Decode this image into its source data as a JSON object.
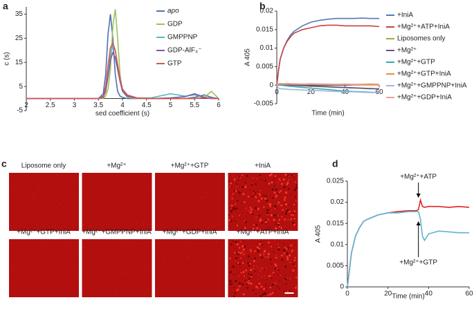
{
  "chart_data": [
    {
      "type": "line",
      "panel_label": "a",
      "y_label": "c (s)",
      "x_label": "sed coefficient (s)",
      "xlim": [
        2,
        6
      ],
      "xticks": [
        2,
        2.5,
        3,
        3.5,
        4,
        4.5,
        5,
        5.5,
        6
      ],
      "ylim": [
        -5,
        38
      ],
      "yticks": [
        -5,
        5,
        15,
        25,
        35
      ],
      "x": [
        2,
        3,
        3.5,
        3.6,
        3.65,
        3.7,
        3.75,
        3.8,
        3.85,
        3.9,
        3.95,
        4.0,
        4.1,
        4.3,
        4.6,
        5,
        5.3,
        5.5,
        5.7,
        5.85,
        6
      ],
      "series": [
        {
          "name": "apo",
          "color": "#4f6fb0",
          "values": [
            0,
            0,
            0,
            2,
            10,
            27,
            35,
            25,
            10,
            3,
            1,
            0.5,
            0,
            0,
            0,
            0,
            0,
            0.5,
            1.5,
            0.5,
            0
          ]
        },
        {
          "name": "GDP",
          "color": "#9bc256",
          "values": [
            0,
            0,
            0,
            0,
            1,
            4,
            12,
            30,
            37,
            25,
            10,
            3,
            0.5,
            0,
            0,
            0,
            0,
            0,
            0.5,
            3,
            0
          ]
        },
        {
          "name": "GMPPNP",
          "color": "#58b6c0",
          "values": [
            0,
            0,
            0,
            0.5,
            3,
            10,
            18,
            22,
            20,
            14,
            8,
            4,
            1,
            0.2,
            0.3,
            2,
            1,
            1.5,
            0.5,
            0.2,
            0
          ]
        },
        {
          "name": "GDP-AlF₄⁻",
          "color": "#7a5aa6",
          "values": [
            0,
            0,
            0,
            0.5,
            3,
            9,
            16,
            19,
            17,
            12,
            7,
            3,
            1,
            0.2,
            0,
            0.3,
            0.8,
            2,
            0.5,
            0,
            0
          ]
        },
        {
          "name": "GTP",
          "color": "#d9534f",
          "values": [
            0,
            0,
            0,
            1,
            5,
            14,
            21,
            23,
            20,
            14,
            8,
            4,
            1.5,
            0.3,
            0,
            0,
            0,
            0,
            0.3,
            0,
            0
          ]
        }
      ]
    },
    {
      "type": "line",
      "panel_label": "b",
      "y_label": "A 405",
      "x_label": "Time (min)",
      "xlim": [
        0,
        60
      ],
      "xticks": [
        0,
        20,
        40,
        60
      ],
      "ylim": [
        -0.005,
        0.02
      ],
      "yticks": [
        -0.005,
        0,
        0.005,
        0.01,
        0.015,
        0.02
      ],
      "x": [
        0,
        1,
        2,
        4,
        6,
        8,
        10,
        15,
        20,
        25,
        30,
        35,
        40,
        45,
        50,
        55,
        60
      ],
      "series": [
        {
          "name": "+IniA",
          "color": "#4f79b8",
          "values": [
            0,
            0.004,
            0.007,
            0.01,
            0.012,
            0.0135,
            0.0145,
            0.016,
            0.017,
            0.0175,
            0.0178,
            0.018,
            0.018,
            0.018,
            0.0181,
            0.018,
            0.018
          ]
        },
        {
          "name": "+Mg²⁺+ATP+IniA",
          "color": "#c8413f",
          "values": [
            0,
            0.004,
            0.007,
            0.01,
            0.0118,
            0.013,
            0.014,
            0.015,
            0.0155,
            0.016,
            0.0162,
            0.0162,
            0.016,
            0.016,
            0.016,
            0.016,
            0.0158
          ]
        },
        {
          "name": "Liposomes only",
          "color": "#8db14a",
          "values": [
            0,
            0,
            0,
            0,
            0,
            0,
            -0.0001,
            -0.0002,
            -0.0003,
            -0.0004,
            -0.0005,
            -0.0006,
            -0.0007,
            -0.0008,
            -0.0009,
            -0.001,
            -0.001
          ]
        },
        {
          "name": "+Mg²⁺",
          "color": "#6a4c93",
          "values": [
            0,
            0,
            0,
            0,
            0,
            0,
            0,
            -0.0001,
            -0.0002,
            -0.0003,
            -0.0004,
            -0.0005,
            -0.0006,
            -0.0007,
            -0.0008,
            -0.0009,
            -0.001
          ]
        },
        {
          "name": "+Mg²⁺+GTP",
          "color": "#3aa6b5",
          "values": [
            0,
            0,
            0,
            -0.0001,
            -0.0002,
            -0.0003,
            -0.0004,
            -0.0006,
            -0.0008,
            -0.001,
            -0.0012,
            -0.0014,
            -0.0016,
            -0.0017,
            -0.0018,
            -0.0019,
            -0.002
          ]
        },
        {
          "name": "+Mg²⁺+GTP+IniA",
          "color": "#e8913a",
          "values": [
            0,
            0.0002,
            0.0003,
            0.0003,
            0.0002,
            0.0003,
            0.0002,
            0.0003,
            0.0002,
            0.0003,
            0.0002,
            0.0002,
            0.0003,
            0.0002,
            0.0002,
            0.0003,
            0.0002
          ]
        },
        {
          "name": "+Mg²⁺+GMPPNP+IniA",
          "color": "#9db7e0",
          "values": [
            0,
            -0.0008,
            -0.001,
            -0.001,
            -0.0011,
            -0.0012,
            -0.0012,
            -0.0013,
            -0.0014,
            -0.0015,
            -0.0016,
            -0.0017,
            -0.0018,
            -0.0018,
            -0.0019,
            -0.002,
            -0.002
          ]
        },
        {
          "name": "+Mg²⁺+GDP+IniA",
          "color": "#e8a39a",
          "values": [
            0,
            0.0004,
            0.0005,
            0.0004,
            0.0005,
            0.0004,
            0.0004,
            0.0003,
            0.0004,
            0.0003,
            0.0003,
            0.0002,
            0.0002,
            0.0001,
            0,
            0,
            0
          ]
        }
      ]
    },
    {
      "type": "image-grid",
      "panel_label": "c",
      "labels": [
        "Liposome only",
        "+Mg²⁺",
        "+Mg²⁺+GTP",
        "+IniA",
        "+Mg²⁺+GTP+IniA",
        "+Mg²⁺+GMPPNP+IniA",
        "+Mg²⁺+GDP+IniA",
        "+Mg²⁺+ATP+IniA"
      ]
    },
    {
      "type": "line",
      "panel_label": "d",
      "y_label": "A 405",
      "x_label": "Time (min)",
      "xlim": [
        0,
        60
      ],
      "xticks": [
        0,
        20,
        40,
        60
      ],
      "ylim": [
        0,
        0.025
      ],
      "yticks": [
        0,
        0.005,
        0.01,
        0.015,
        0.02,
        0.025
      ],
      "annotations": [
        "+Mg²⁺+ATP",
        "+Mg²⁺+GTP"
      ],
      "x": [
        0,
        2,
        4,
        6,
        8,
        10,
        15,
        20,
        25,
        30,
        34,
        35,
        36,
        37,
        38,
        40,
        45,
        50,
        55,
        60
      ],
      "series": [
        {
          "color": "#e02020",
          "values": [
            0,
            0.008,
            0.012,
            0.014,
            0.0155,
            0.016,
            0.017,
            0.0175,
            0.0178,
            0.018,
            0.018,
            0.0183,
            0.0205,
            0.019,
            0.0188,
            0.019,
            0.019,
            0.0188,
            0.019,
            0.0188
          ]
        },
        {
          "color": "#5ab4d4",
          "values": [
            0,
            0.008,
            0.012,
            0.014,
            0.0155,
            0.016,
            0.017,
            0.0175,
            0.0175,
            0.0178,
            0.0178,
            0.0178,
            0.016,
            0.012,
            0.011,
            0.0125,
            0.0132,
            0.013,
            0.0128,
            0.0128
          ]
        }
      ]
    }
  ]
}
